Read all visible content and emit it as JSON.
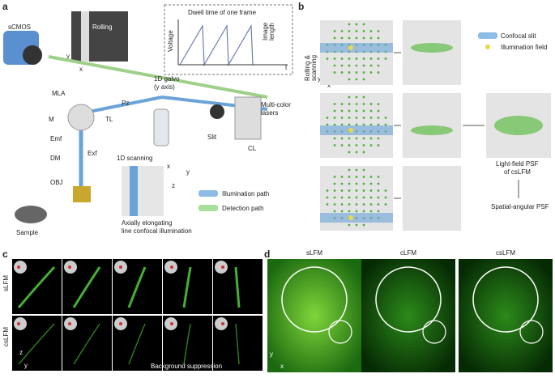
{
  "panel_a": {
    "label": "a",
    "camera": "sCMOS",
    "inset": {
      "text": "Rolling",
      "axis_x": "x",
      "axis_y": "y"
    },
    "plot": {
      "title": "Dwell time of one frame",
      "y_label": "Voltage",
      "x_label": "t",
      "annotation": [
        "Image",
        "length"
      ]
    },
    "galvo": [
      "1D galvo",
      "(y axis)"
    ],
    "pz": "Pz",
    "mla": "MLA",
    "m": "M",
    "tl": "TL",
    "emf": "Emf",
    "dm": "DM",
    "exf": "Exf",
    "obj": "OBJ",
    "slit": "Slit",
    "cl": "CL",
    "lasers": [
      "Multi-color",
      "lasers"
    ],
    "scanning": "1D scanning",
    "sample": "Sample",
    "caption": [
      "Axially elongating",
      "line confocal illumination"
    ],
    "axes": [
      "x",
      "y",
      "z"
    ],
    "legend": [
      "Illumination path",
      "Detection path"
    ]
  },
  "panel_b": {
    "label": "b",
    "side_label": [
      "Rolling &",
      "scanning"
    ],
    "axes": [
      "y",
      "x"
    ],
    "legend": [
      "Confocal slit",
      "Illumination field"
    ],
    "psf": [
      "Light-field PSF",
      "of csLFM"
    ],
    "result": "Spatial-angular PSF"
  },
  "panel_c": {
    "label": "c",
    "rows": [
      "sLFM",
      "csLFM"
    ],
    "axes": [
      "z",
      "y"
    ],
    "annotation": "Background suppression"
  },
  "panel_d": {
    "label": "d",
    "columns": [
      "sLFM",
      "cLFM",
      "csLFM"
    ],
    "axes": [
      "y",
      "x"
    ]
  }
}
